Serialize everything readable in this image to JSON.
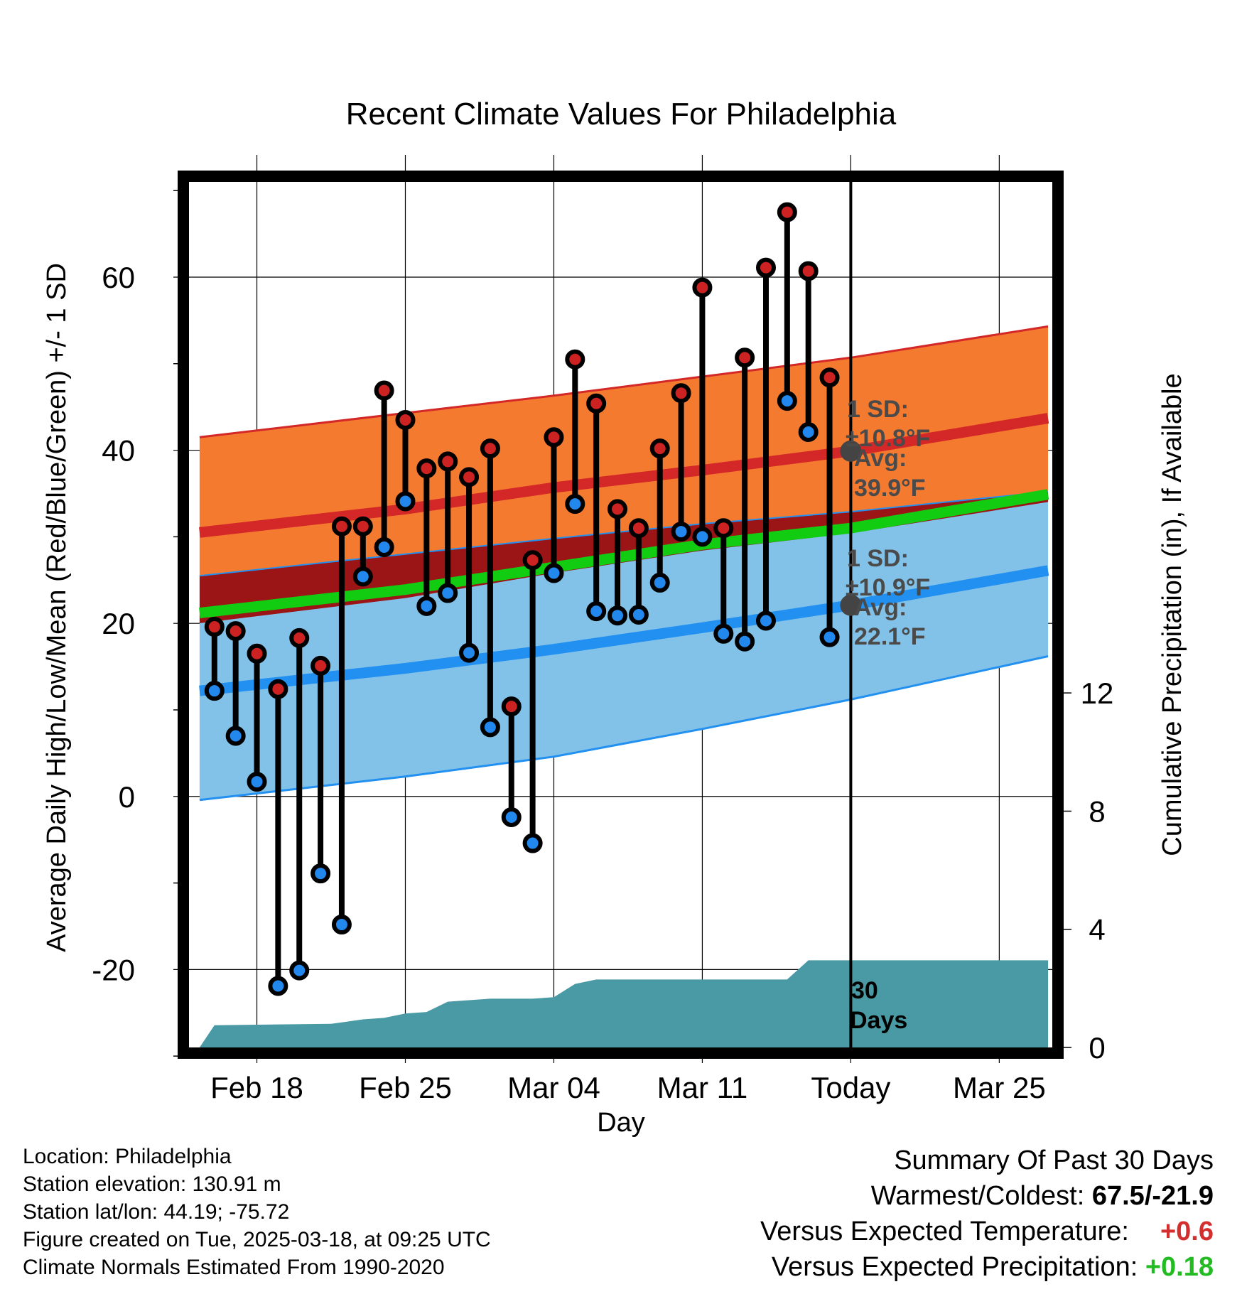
{
  "chart_data": {
    "type": "line",
    "title": "Recent Climate Values For Philadelphia",
    "xlabel": "Day",
    "ylabel": "Average Daily High/Low/Mean (Red/Blue/Green) +/- 1 SD",
    "y2label": "Cumulative Precipitation (in), If Available",
    "ylim": [
      -29,
      71
    ],
    "y2lim": [
      0,
      29.3
    ],
    "yticks": [
      -20,
      0,
      20,
      40,
      60
    ],
    "y2ticks": [
      0,
      4,
      8,
      12
    ],
    "xlim": [
      -3.2,
      37.5
    ],
    "xticks": [
      {
        "day": 0,
        "label": "Feb 18"
      },
      {
        "day": 7,
        "label": "Feb 25"
      },
      {
        "day": 14,
        "label": "Mar 04"
      },
      {
        "day": 21,
        "label": "Mar 11"
      },
      {
        "day": 28,
        "label": "Today"
      },
      {
        "day": 35,
        "label": "Mar 25"
      }
    ],
    "today_day": 28,
    "normals": {
      "days": [
        -2.7,
        7,
        14,
        21,
        28,
        37.3
      ],
      "high_avg": [
        30.5,
        33.2,
        35.7,
        37.7,
        39.9,
        43.7
      ],
      "high_upper": [
        41.5,
        44.3,
        46.3,
        48.5,
        50.7,
        54.3
      ],
      "high_lower": [
        25.5,
        28.0,
        29.8,
        31.5,
        32.9,
        35.2
      ],
      "low_avg": [
        12.2,
        14.8,
        17.0,
        19.5,
        22.1,
        26.1
      ],
      "low_upper": [
        20.1,
        23.0,
        25.9,
        28.5,
        30.5,
        34.1
      ],
      "low_lower": [
        -0.4,
        2.3,
        4.6,
        7.8,
        11.2,
        16.2
      ],
      "mean_avg": [
        21.2,
        23.9,
        26.5,
        29.1,
        31.0,
        34.9
      ]
    },
    "series": [
      {
        "name": "Daily High",
        "color": "#cc2222",
        "days": [
          -2,
          -1,
          0,
          1,
          2,
          3,
          4,
          5,
          6,
          7,
          8,
          9,
          10,
          11,
          12,
          13,
          14,
          15,
          16,
          17,
          18,
          19,
          20,
          21,
          22,
          23,
          24,
          25,
          26,
          27
        ],
        "values": [
          19.6,
          19.1,
          16.5,
          12.4,
          18.3,
          15.1,
          31.2,
          31.2,
          46.9,
          43.5,
          37.9,
          38.7,
          36.9,
          40.2,
          10.4,
          27.3,
          41.5,
          50.5,
          45.4,
          33.2,
          31.0,
          40.2,
          46.6,
          58.8,
          31.0,
          50.7,
          61.1,
          67.5,
          60.7,
          48.4
        ]
      },
      {
        "name": "Daily Low",
        "color": "#2288ee",
        "days": [
          -2,
          -1,
          0,
          1,
          2,
          3,
          4,
          5,
          6,
          7,
          8,
          9,
          10,
          11,
          12,
          13,
          14,
          15,
          16,
          17,
          18,
          19,
          20,
          21,
          22,
          23,
          24,
          25,
          26,
          27
        ],
        "values": [
          12.2,
          7.0,
          1.7,
          -21.9,
          -20.1,
          -8.9,
          -14.8,
          25.4,
          28.8,
          34.1,
          22.0,
          23.5,
          16.6,
          8.0,
          -2.4,
          -5.4,
          25.8,
          33.8,
          21.4,
          20.9,
          21.0,
          24.7,
          30.6,
          30.0,
          18.8,
          17.9,
          20.3,
          45.7,
          42.1,
          18.4
        ]
      },
      {
        "name": "Cumulative Precipitation",
        "color": "#4a9aa5",
        "days": [
          -2.7,
          -2.0,
          3.5,
          4.0,
          5.0,
          6.0,
          7.0,
          8.0,
          9.0,
          10.0,
          11.0,
          12.0,
          13.0,
          14.0,
          15.0,
          16.0,
          17.0,
          18.0,
          19.0,
          20.0,
          21.0,
          22.0,
          23.0,
          24.0,
          25.0,
          26.0,
          27.0,
          37.3
        ],
        "values": [
          0.0,
          0.75,
          0.8,
          0.85,
          0.95,
          1.0,
          1.15,
          1.2,
          1.55,
          1.6,
          1.65,
          1.65,
          1.65,
          1.7,
          2.15,
          2.3,
          2.3,
          2.3,
          2.3,
          2.3,
          2.3,
          2.3,
          2.3,
          2.3,
          2.3,
          2.95,
          2.95,
          2.95
        ]
      }
    ],
    "annotations": {
      "high_sd": "1 SD:",
      "high_sd_value": "±10.8°F",
      "high_avg_label": "Avg:",
      "high_avg_value": "39.9°F",
      "low_sd": "1 SD:",
      "low_sd_value": "±10.9°F",
      "low_avg_label": "Avg:",
      "low_avg_value": "22.1°F",
      "days_count": "30",
      "days_word": "Days"
    },
    "colors": {
      "high_band": "#f47a30",
      "high_line": "#d42828",
      "overlap": "#9b1416",
      "mean_line": "#11cc11",
      "low_band": "#82c1e8",
      "low_line": "#2290f0",
      "precip": "#4a9aa5",
      "high_marker": "#cc2222",
      "low_marker": "#2288ee"
    }
  },
  "footer": {
    "location": "Location: Philadelphia",
    "elevation": "Station elevation: 130.91 m",
    "latlon": "Station lat/lon: 44.19; -75.72",
    "created": "Figure created on Tue, 2025-03-18, at 09:25 UTC",
    "normals": "Climate Normals Estimated From 1990-2020"
  },
  "summary": {
    "title": "Summary Of Past 30 Days",
    "warmest_label": "Warmest/Coldest:",
    "warmest_value": "67.5/-21.9",
    "temp_label": "Versus Expected Temperature:",
    "temp_value": "+0.6",
    "precip_label": "Versus Expected Precipitation:",
    "precip_value": "+0.18"
  }
}
